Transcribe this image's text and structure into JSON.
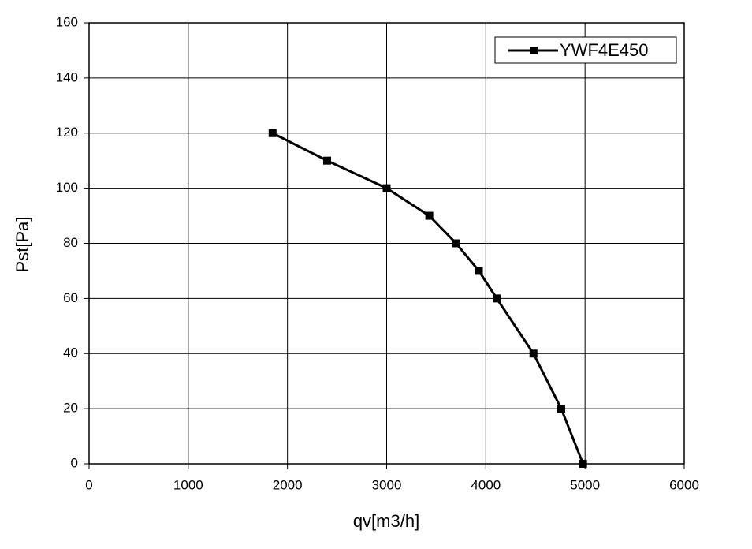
{
  "chart_data": {
    "type": "line",
    "xlabel": "qv[m3/h]",
    "ylabel": "Pst[Pa]",
    "x": [
      1850,
      2400,
      3000,
      3430,
      3700,
      3930,
      4110,
      4480,
      4760,
      4980
    ],
    "series": [
      {
        "name": "YWF4E450",
        "color": "#000000",
        "values": [
          120,
          110,
          100,
          90,
          80,
          70,
          60,
          40,
          20,
          0
        ]
      }
    ],
    "xlim": [
      0,
      6000
    ],
    "xticks": [
      0,
      1000,
      2000,
      3000,
      4000,
      5000,
      6000
    ],
    "ylim": [
      0,
      160
    ],
    "yticks": [
      0,
      20,
      40,
      60,
      80,
      100,
      120,
      140,
      160
    ],
    "grid": true,
    "legend": "upper right"
  }
}
